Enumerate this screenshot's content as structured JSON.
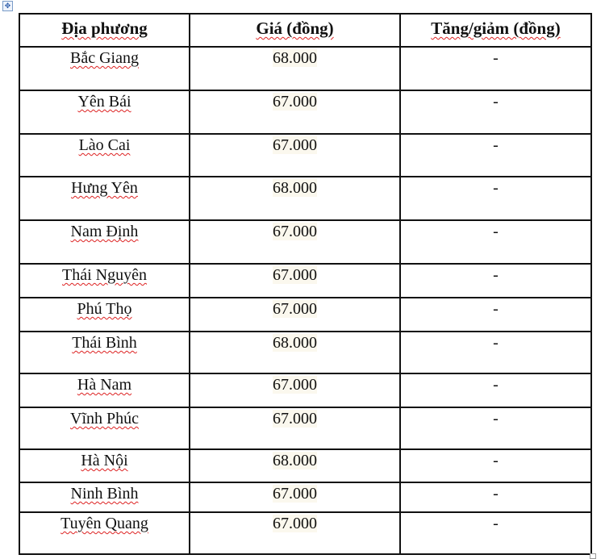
{
  "headers": [
    "Địa phương",
    "Giá (đồng)",
    "Tăng/giảm (đồng)"
  ],
  "rows": [
    {
      "place": "Bắc Giang",
      "price": "68.000",
      "change": "-"
    },
    {
      "place": "Yên Bái",
      "price": "67.000",
      "change": "-"
    },
    {
      "place": "Lào Cai",
      "price": "67.000",
      "change": "-"
    },
    {
      "place": "Hưng Yên",
      "price": "68.000",
      "change": "-"
    },
    {
      "place": "Nam Định",
      "price": "67.000",
      "change": "-"
    },
    {
      "place": "Thái Nguyên",
      "price": "67.000",
      "change": "-"
    },
    {
      "place": "Phú Thọ",
      "price": "67.000",
      "change": "-"
    },
    {
      "place": "Thái Bình",
      "price": "68.000",
      "change": "-"
    },
    {
      "place": "Hà Nam",
      "price": "67.000",
      "change": "-"
    },
    {
      "place": "Vĩnh Phúc",
      "price": "67.000",
      "change": "-"
    },
    {
      "place": "Hà Nội",
      "price": "68.000",
      "change": "-"
    },
    {
      "place": "Ninh Bình",
      "price": "67.000",
      "change": "-"
    },
    {
      "place": "Tuyên Quang",
      "price": "67.000",
      "change": "-"
    }
  ]
}
